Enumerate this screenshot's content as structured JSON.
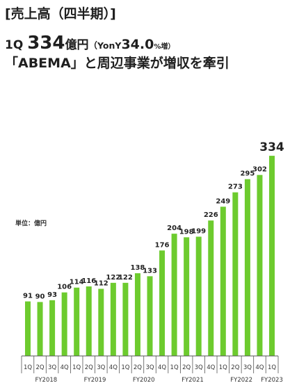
{
  "header": {
    "line1": "[売上高（四半期）]",
    "line2_quarter": "1Q",
    "line2_value": "334",
    "line2_unit": "億円",
    "line2_yoy_prefix": "（YonY",
    "line2_yoy_value": "34.0",
    "line2_yoy_suffix": "%増）",
    "line3": "「ABEMA」と周辺事業が増収を牽引"
  },
  "unit_label": "単位：億円",
  "colors": {
    "bar": "#6dcb2e",
    "axis": "#555555",
    "text": "#1f1f1f"
  },
  "chart_data": {
    "type": "bar",
    "title": "売上高（四半期）",
    "ylabel": "",
    "xlabel": "",
    "categories": [
      "1Q",
      "2Q",
      "3Q",
      "4Q",
      "1Q",
      "2Q",
      "3Q",
      "4Q",
      "1Q",
      "2Q",
      "3Q",
      "4Q",
      "1Q",
      "2Q",
      "3Q",
      "4Q",
      "1Q",
      "2Q",
      "3Q",
      "4Q",
      "1Q"
    ],
    "values": [
      91,
      90,
      93,
      106,
      114,
      116,
      112,
      122,
      122,
      138,
      133,
      176,
      204,
      198,
      199,
      226,
      249,
      273,
      295,
      302,
      334
    ],
    "groups": [
      {
        "label": "FY2018",
        "count": 4
      },
      {
        "label": "FY2019",
        "count": 4
      },
      {
        "label": "FY2020",
        "count": 4
      },
      {
        "label": "FY2021",
        "count": 4
      },
      {
        "label": "FY2022",
        "count": 4
      },
      {
        "label": "FY2023",
        "count": 1
      }
    ],
    "ylim": [
      0,
      334
    ],
    "grid": false,
    "data_labels": true
  }
}
